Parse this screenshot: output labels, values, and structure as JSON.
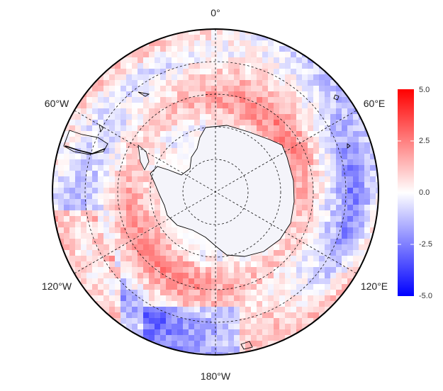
{
  "map": {
    "projection": "south-polar-stereographic",
    "meridian_labels": {
      "top": "0°",
      "upper_left": "60°W",
      "upper_right": "60°E",
      "lower_left": "120°W",
      "lower_right": "120°E",
      "bottom": "180°W"
    },
    "graticule": "dashed",
    "colormap": {
      "low": "#0000ff",
      "mid": "#ffffff",
      "high": "#ff0000"
    },
    "legend": {
      "placement": "right",
      "ticks": [
        "5.0",
        "2.5",
        "0.0",
        "-2.5",
        "-5.0"
      ],
      "range": [
        -5.0,
        5.0
      ]
    }
  }
}
